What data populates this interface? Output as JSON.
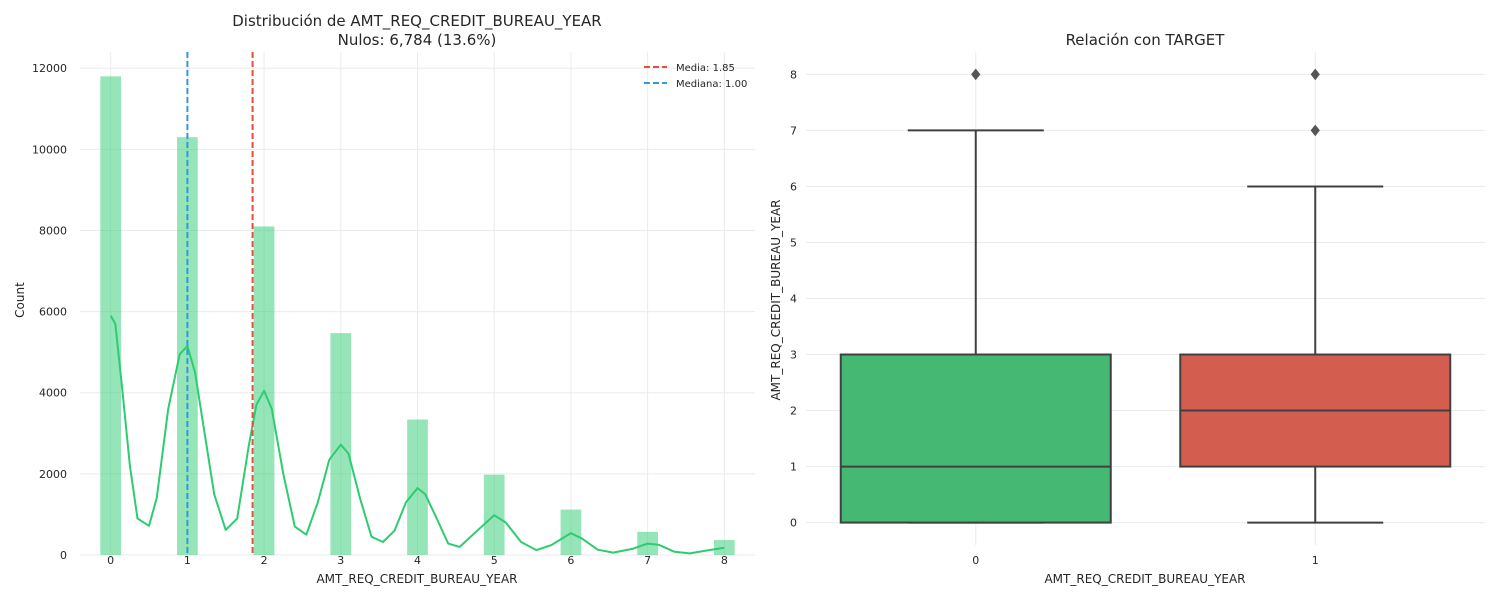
{
  "chart_data": [
    {
      "type": "bar",
      "title": "Distribución de AMT_REQ_CREDIT_BUREAU_YEAR",
      "subtitle": "Nulos: 6,784 (13.6%)",
      "xlabel": "AMT_REQ_CREDIT_BUREAU_YEAR",
      "ylabel": "Count",
      "xlim": [
        -0.4,
        8.4
      ],
      "ylim": [
        0,
        12400
      ],
      "xticks": [
        "0",
        "1",
        "2",
        "3",
        "4",
        "5",
        "6",
        "7",
        "8"
      ],
      "yticks": [
        "0",
        "2000",
        "4000",
        "6000",
        "8000",
        "10000",
        "12000"
      ],
      "grid": true,
      "bar_color": "#2ecc71",
      "bars": [
        {
          "x": 0,
          "value": 11800
        },
        {
          "x": 1,
          "value": 10300
        },
        {
          "x": 2,
          "value": 8100
        },
        {
          "x": 3,
          "value": 5470
        },
        {
          "x": 4,
          "value": 3340
        },
        {
          "x": 5,
          "value": 1980
        },
        {
          "x": 6,
          "value": 1120
        },
        {
          "x": 7,
          "value": 570
        },
        {
          "x": 8,
          "value": 370
        }
      ],
      "kde_color": "#2ecc71",
      "kde_points": [
        [
          0,
          5900
        ],
        [
          0.06,
          5700
        ],
        [
          0.15,
          4100
        ],
        [
          0.25,
          2200
        ],
        [
          0.35,
          900
        ],
        [
          0.5,
          720
        ],
        [
          0.6,
          1400
        ],
        [
          0.75,
          3600
        ],
        [
          0.9,
          4950
        ],
        [
          1.0,
          5150
        ],
        [
          1.1,
          4500
        ],
        [
          1.2,
          3300
        ],
        [
          1.35,
          1500
        ],
        [
          1.5,
          620
        ],
        [
          1.65,
          900
        ],
        [
          1.8,
          2700
        ],
        [
          1.9,
          3700
        ],
        [
          2.0,
          4050
        ],
        [
          2.1,
          3600
        ],
        [
          2.25,
          2000
        ],
        [
          2.4,
          700
        ],
        [
          2.55,
          500
        ],
        [
          2.7,
          1300
        ],
        [
          2.85,
          2350
        ],
        [
          3.0,
          2720
        ],
        [
          3.1,
          2500
        ],
        [
          3.25,
          1400
        ],
        [
          3.4,
          450
        ],
        [
          3.55,
          320
        ],
        [
          3.7,
          600
        ],
        [
          3.85,
          1300
        ],
        [
          4.0,
          1650
        ],
        [
          4.1,
          1500
        ],
        [
          4.25,
          900
        ],
        [
          4.4,
          280
        ],
        [
          4.55,
          200
        ],
        [
          4.75,
          550
        ],
        [
          5.0,
          980
        ],
        [
          5.15,
          800
        ],
        [
          5.35,
          320
        ],
        [
          5.55,
          120
        ],
        [
          5.75,
          250
        ],
        [
          6.0,
          540
        ],
        [
          6.15,
          400
        ],
        [
          6.35,
          130
        ],
        [
          6.55,
          60
        ],
        [
          6.8,
          150
        ],
        [
          7.0,
          280
        ],
        [
          7.15,
          250
        ],
        [
          7.35,
          80
        ],
        [
          7.55,
          40
        ],
        [
          7.8,
          120
        ],
        [
          8.0,
          180
        ]
      ],
      "lines": [
        {
          "name": "Media: 1.85",
          "x": 1.85,
          "color": "#e74c3c"
        },
        {
          "name": "Mediana: 1.00",
          "x": 1.0,
          "color": "#3498db"
        }
      ],
      "legend": "top-right"
    },
    {
      "type": "box",
      "title": "Relación con TARGET",
      "xlabel": "AMT_REQ_CREDIT_BUREAU_YEAR",
      "ylabel": "AMT_REQ_CREDIT_BUREAU_YEAR",
      "ylim": [
        -0.4,
        8.4
      ],
      "yticks": [
        "0",
        "1",
        "2",
        "3",
        "4",
        "5",
        "6",
        "7",
        "8"
      ],
      "grid": true,
      "categories": [
        "0",
        "1"
      ],
      "boxes": [
        {
          "category": "0",
          "min": 0,
          "q1": 0,
          "median": 1,
          "q3": 3,
          "max": 7,
          "outliers": [
            8
          ],
          "color": "#45b874"
        },
        {
          "category": "1",
          "min": 0,
          "q1": 1,
          "median": 2,
          "q3": 3,
          "max": 6,
          "outliers": [
            7,
            8
          ],
          "color": "#d35e50"
        }
      ]
    }
  ]
}
